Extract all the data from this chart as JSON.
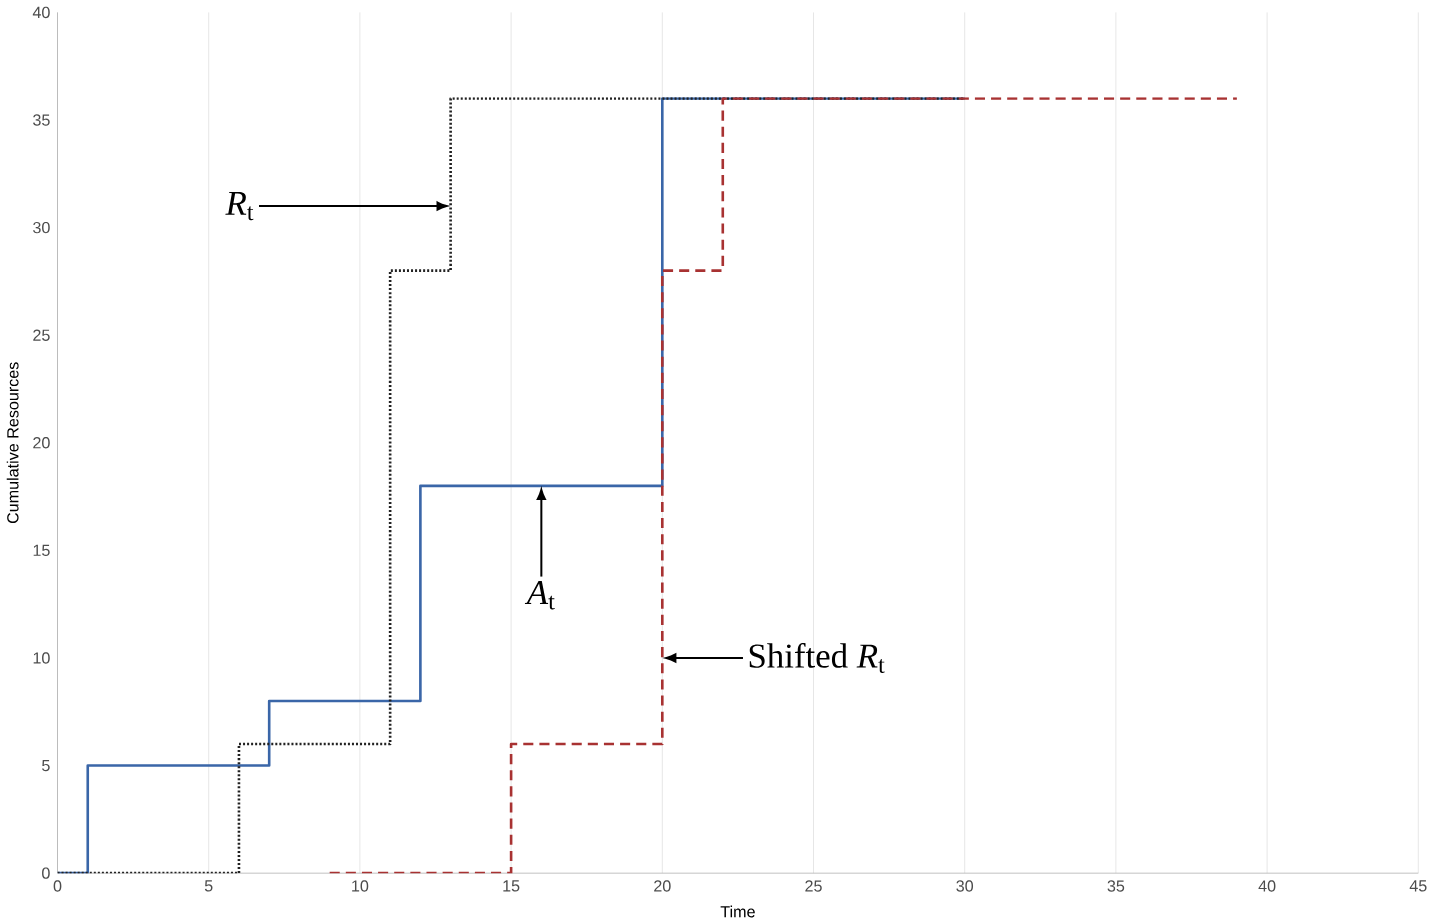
{
  "chart_data": {
    "type": "step",
    "xlabel": "Time",
    "ylabel": "Cumulative Resources",
    "xlim": [
      0,
      45
    ],
    "ylim": [
      0,
      40
    ],
    "xticks": [
      0,
      5,
      10,
      15,
      20,
      25,
      30,
      35,
      40,
      45
    ],
    "yticks": [
      0,
      5,
      10,
      15,
      20,
      25,
      30,
      35,
      40
    ],
    "grid": "x",
    "marker": "none",
    "series": [
      {
        "color": "#3a66a8",
        "line_style": "solid",
        "x": [
          0,
          1,
          7,
          12,
          20,
          30
        ],
        "values": [
          0,
          5,
          8,
          18,
          36,
          36
        ]
      },
      {
        "color": "#222222",
        "line_style": "dotted",
        "x": [
          0,
          6,
          11,
          13,
          30
        ],
        "values": [
          0,
          6,
          28,
          36,
          36
        ]
      },
      {
        "color": "#a83232",
        "line_style": "dashed",
        "x": [
          9,
          15,
          20,
          22,
          39
        ],
        "values": [
          0,
          6,
          28,
          36,
          36
        ]
      }
    ],
    "annotations": [
      {
        "text": "*R*$_{t}$",
        "x": 13,
        "y": 31
      },
      {
        "text": "*A*$_{t}$",
        "x": 16,
        "y": 18
      },
      {
        "text": "Shifted *R*$_{t}$",
        "x": 20,
        "y": 10
      }
    ]
  }
}
